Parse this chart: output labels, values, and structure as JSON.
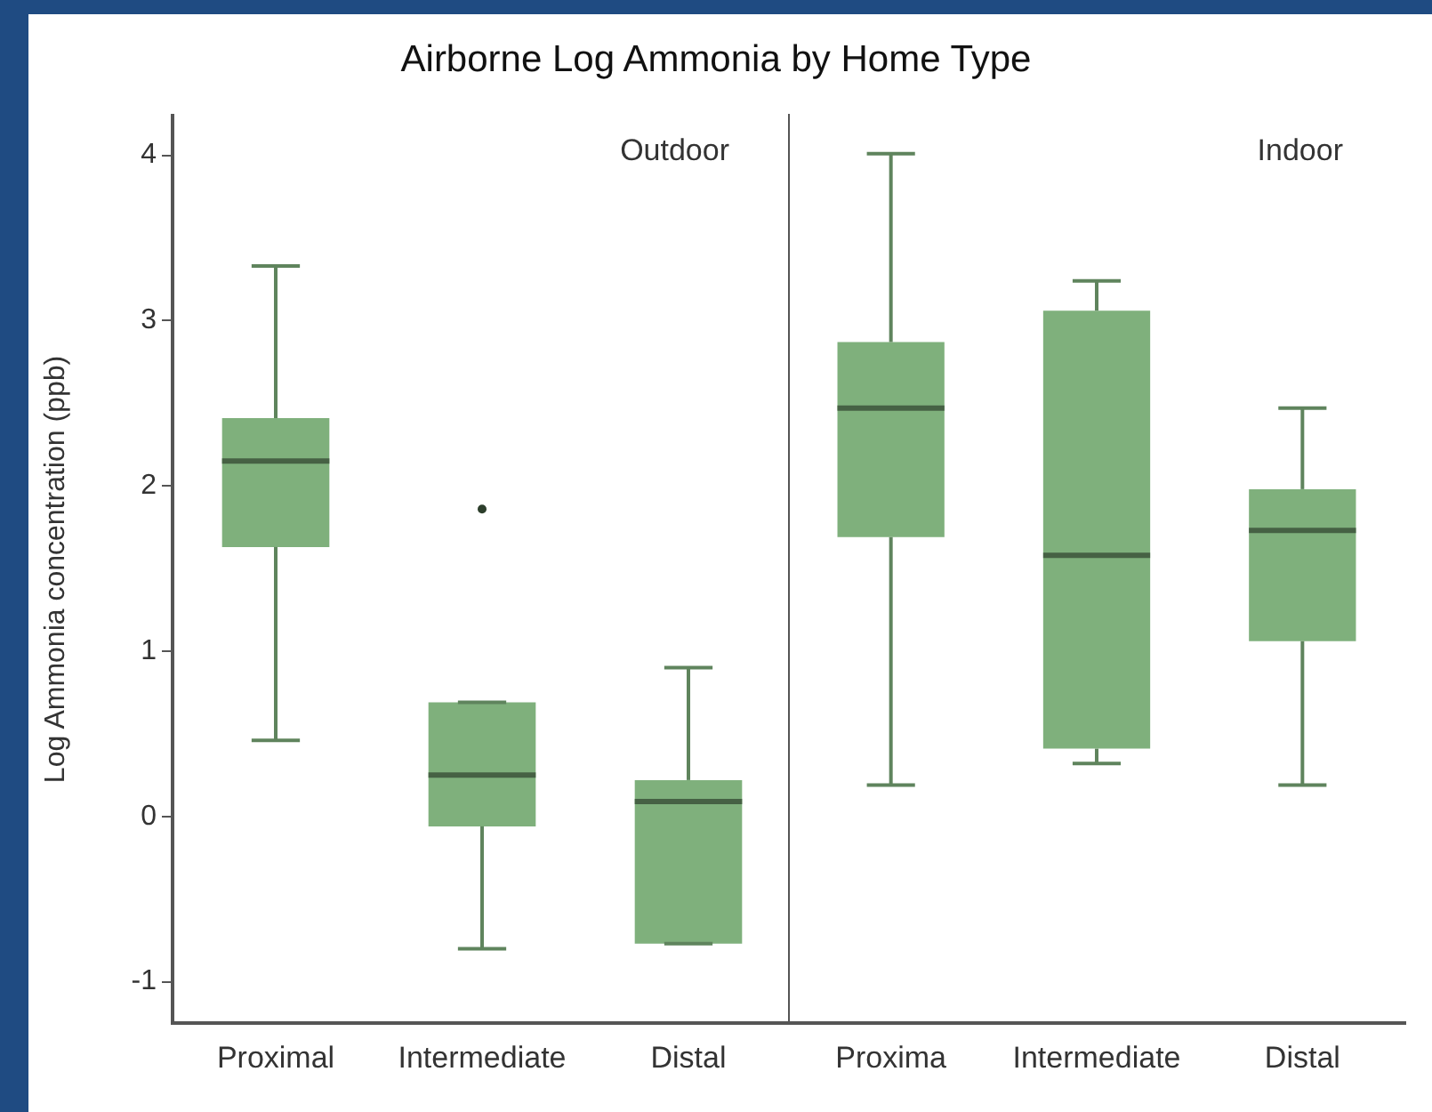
{
  "chart_data": [
    {
      "type": "box",
      "title": "Airborne Log Ammonia by Home Type",
      "ylabel": "Log Ammonia concentration (ppb)",
      "categories": [
        "Proximal",
        "Intermediate",
        "Distal"
      ],
      "annotations": [
        "Outdoor"
      ],
      "ylim": [
        -1.25,
        4.24
      ],
      "yticks": [
        -1,
        0,
        1,
        2,
        3,
        4
      ],
      "grid": false,
      "series": [
        {
          "color": "#7fb07c",
          "boxes": [
            {
              "low": 0.46,
              "q1": 1.63,
              "median": 2.15,
              "q3": 2.41,
              "high": 3.33
            },
            {
              "low": -0.8,
              "q1": -0.06,
              "median": 0.25,
              "q3": 0.69,
              "high": 0.69,
              "outliers": [
                1.86
              ]
            },
            {
              "low": -0.77,
              "q1": -0.77,
              "median": 0.09,
              "q3": 0.22,
              "high": 0.9
            }
          ]
        }
      ]
    },
    {
      "type": "box",
      "categories": [
        "Proxima",
        "Intermediate",
        "Distal"
      ],
      "annotations": [
        "Indoor"
      ],
      "ylim": [
        -1.25,
        4.24
      ],
      "tick_labels": "x",
      "grid": false,
      "series": [
        {
          "color": "#7fb07c",
          "boxes": [
            {
              "low": 0.19,
              "q1": 1.69,
              "median": 2.47,
              "q3": 2.87,
              "high": 4.01
            },
            {
              "low": 0.32,
              "q1": 0.41,
              "median": 1.58,
              "q3": 3.06,
              "high": 3.24
            },
            {
              "low": 0.19,
              "q1": 1.06,
              "median": 1.73,
              "q3": 1.98,
              "high": 2.47
            }
          ]
        }
      ]
    }
  ]
}
